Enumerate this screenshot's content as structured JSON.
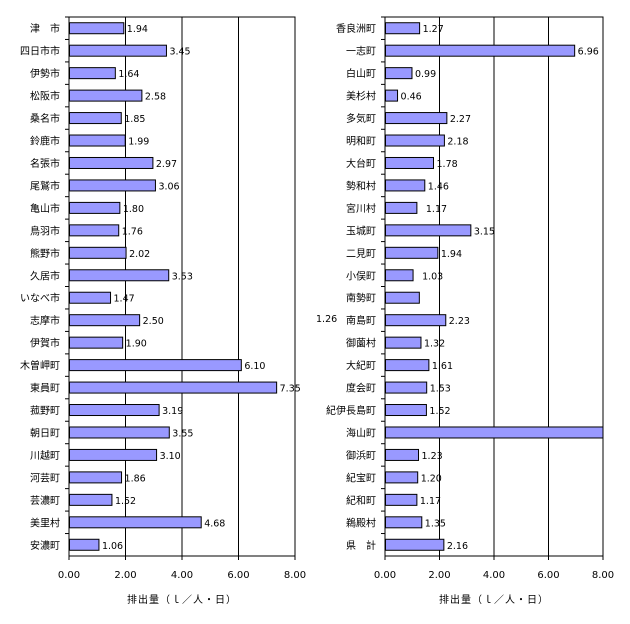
{
  "colors": {
    "bar_fill": "#9999ff",
    "bar_stroke": "#000000",
    "grid": "#000000",
    "background": "#ffffff"
  },
  "chart_data": [
    {
      "type": "bar",
      "orientation": "horizontal",
      "categories": [
        "津　市",
        "四日市市",
        "伊勢市",
        "松阪市",
        "桑名市",
        "鈴鹿市",
        "名張市",
        "尾鷲市",
        "亀山市",
        "鳥羽市",
        "熊野市",
        "久居市",
        "いなべ市",
        "志摩市",
        "伊賀市",
        "木曽岬町",
        "東員町",
        "菰野町",
        "朝日町",
        "川越町",
        "河芸町",
        "芸濃町",
        "美里村",
        "安濃町"
      ],
      "values": [
        1.94,
        3.45,
        1.64,
        2.58,
        1.85,
        1.99,
        2.97,
        3.06,
        1.8,
        1.76,
        2.02,
        3.53,
        1.47,
        2.5,
        1.9,
        6.1,
        7.35,
        3.19,
        3.55,
        3.1,
        1.86,
        1.52,
        4.68,
        1.06
      ],
      "value_labels": [
        "1.94",
        "3.45",
        "1.64",
        "2.58",
        "1.85",
        "1.99",
        "2.97",
        "3.06",
        "1.80",
        "1.76",
        "2.02",
        "3.53",
        "1.47",
        "2.50",
        "1.90",
        "6.10",
        "7.35",
        "3.19",
        "3.55",
        "3.10",
        "1.86",
        "1.52",
        "4.68",
        "1.06"
      ],
      "xlim": [
        0,
        8
      ],
      "xticks": [
        "0.00",
        "2.00",
        "4.00",
        "6.00",
        "8.00"
      ],
      "xlabel": "排出量（ｌ／人・日）",
      "grid": "vertical"
    },
    {
      "type": "bar",
      "orientation": "horizontal",
      "categories": [
        "香良洲町",
        "一志町",
        "白山町",
        "美杉村",
        "多気町",
        "明和町",
        "大台町",
        "勢和村",
        "宮川村",
        "玉城町",
        "二見町",
        "小俣町",
        "南勢町",
        "南島町",
        "御薗村",
        "大紀町",
        "度会町",
        "紀伊長島町",
        "海山町",
        "御浜町",
        "紀宝町",
        "紀和町",
        "鵜殿村",
        "県　計"
      ],
      "values": [
        1.27,
        6.96,
        0.99,
        0.46,
        2.27,
        2.18,
        1.78,
        1.46,
        1.17,
        3.15,
        1.94,
        1.03,
        1.26,
        2.23,
        1.32,
        1.61,
        1.53,
        1.52,
        8.0,
        1.23,
        1.2,
        1.17,
        1.35,
        2.16
      ],
      "value_labels": [
        "1.27",
        "6.96",
        "0.99",
        "0.46",
        "2.27",
        "2.18",
        "1.78",
        "1.46",
        "1.17",
        "3.15",
        "1.94",
        "1.03",
        "1.26",
        "2.23",
        "1.32",
        "1.61",
        "1.53",
        "1.52",
        "",
        "1.23",
        "1.20",
        "1.17",
        "1.35",
        "2.16"
      ],
      "xlim": [
        0,
        8
      ],
      "xticks": [
        "0.00",
        "2.00",
        "4.00",
        "6.00",
        "8.00"
      ],
      "xlabel": "排出量（ｌ／人・日）",
      "grid": "vertical"
    }
  ]
}
